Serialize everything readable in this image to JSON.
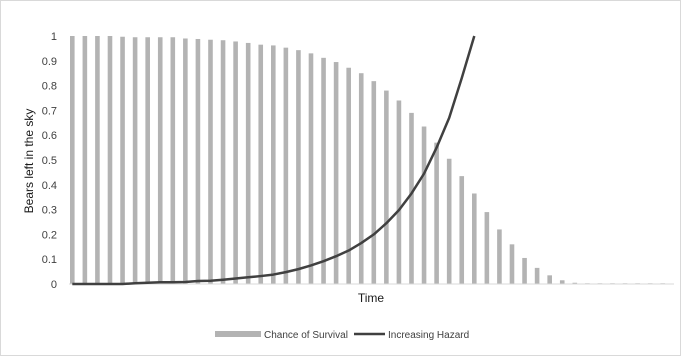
{
  "chart_data": {
    "type": "bar",
    "title": "",
    "xlabel": "Time",
    "ylabel": "Bears left in the sky",
    "ylim": [
      0,
      1
    ],
    "yticks": [
      "0",
      "0.1",
      "0.2",
      "0.3",
      "0.4",
      "0.5",
      "0.6",
      "0.7",
      "0.8",
      "0.9",
      "1"
    ],
    "grid": false,
    "legend_position": "bottom",
    "series": [
      {
        "name": "Chance of Survival",
        "type": "bar",
        "color": "#b3b3b3",
        "values": [
          1.0,
          1.0,
          1.0,
          1.0,
          0.997,
          0.995,
          0.995,
          0.995,
          0.995,
          0.99,
          0.988,
          0.985,
          0.983,
          0.978,
          0.972,
          0.965,
          0.962,
          0.953,
          0.943,
          0.93,
          0.912,
          0.895,
          0.872,
          0.85,
          0.818,
          0.78,
          0.74,
          0.69,
          0.635,
          0.57,
          0.505,
          0.435,
          0.365,
          0.29,
          0.22,
          0.16,
          0.105,
          0.065,
          0.035,
          0.015,
          0.005,
          0.003,
          0.003,
          0.003,
          0.003,
          0.003,
          0.003,
          0.003
        ]
      },
      {
        "name": "Increasing Hazard",
        "type": "line",
        "color": "#404040",
        "values": [
          0.0,
          0.0,
          0.0,
          0.0,
          0.0,
          0.003,
          0.005,
          0.007,
          0.007,
          0.008,
          0.012,
          0.013,
          0.017,
          0.022,
          0.027,
          0.032,
          0.038,
          0.048,
          0.06,
          0.075,
          0.092,
          0.112,
          0.135,
          0.165,
          0.2,
          0.245,
          0.298,
          0.365,
          0.445,
          0.55,
          0.67,
          0.83,
          1.0
        ]
      }
    ]
  }
}
